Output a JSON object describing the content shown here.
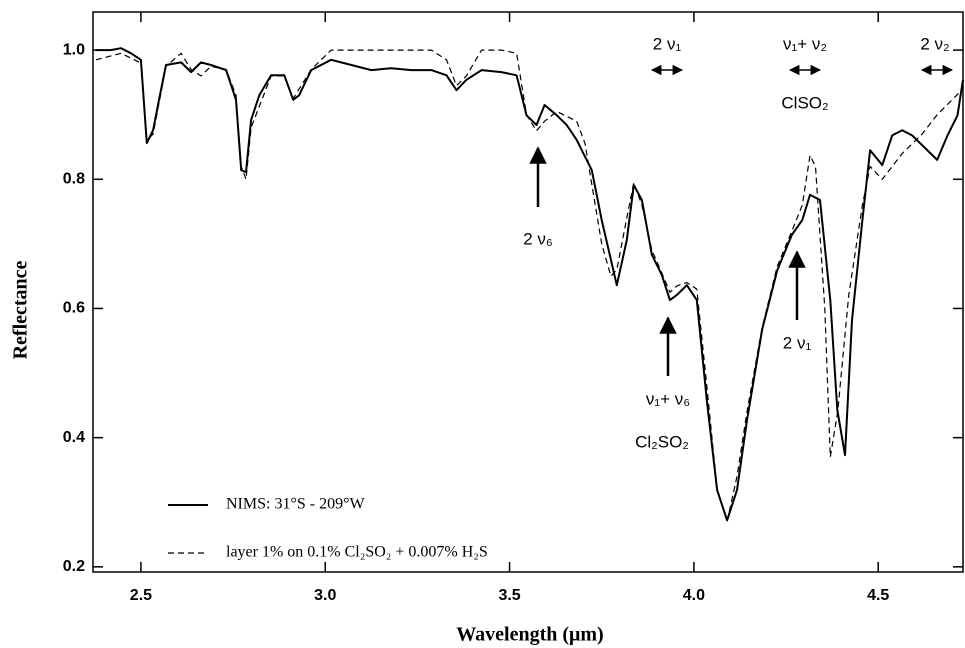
{
  "chart_data": {
    "type": "line",
    "xlabel": "Wavelength  (μm)",
    "ylabel": "Reflectance",
    "xlim": [
      2.37,
      4.73
    ],
    "ylim": [
      0.192,
      1.059
    ],
    "xticks": [
      2.5,
      {
        "value": 3,
        "label": "3.0"
      },
      3.5,
      {
        "value": 4,
        "label": "4.0"
      },
      4.5
    ],
    "yticks": [
      0.2,
      0.4,
      0.6,
      0.8,
      {
        "value": 1,
        "label": "1.0"
      }
    ],
    "grid": false,
    "series": [
      {
        "name": "NIMS:  31°S - 209°W",
        "color": "#000000",
        "dash": false,
        "x": [
          2.378,
          2.418,
          2.446,
          2.473,
          2.5,
          2.516,
          2.533,
          2.549,
          2.568,
          2.609,
          2.636,
          2.663,
          2.69,
          2.731,
          2.758,
          2.772,
          2.785,
          2.799,
          2.821,
          2.853,
          2.889,
          2.913,
          2.929,
          2.962,
          3.016,
          3.071,
          3.125,
          3.179,
          3.234,
          3.288,
          3.329,
          3.356,
          3.383,
          3.424,
          3.478,
          3.519,
          3.546,
          3.573,
          3.595,
          3.628,
          3.655,
          3.682,
          3.723,
          3.75,
          3.791,
          3.818,
          3.837,
          3.859,
          3.886,
          3.913,
          3.935,
          3.954,
          3.981,
          4.008,
          4.035,
          4.063,
          4.09,
          4.117,
          4.144,
          4.185,
          4.226,
          4.266,
          4.294,
          4.315,
          4.342,
          4.37,
          4.389,
          4.41,
          4.429,
          4.457,
          4.478,
          4.511,
          4.538,
          4.565,
          4.592,
          4.619,
          4.66,
          4.688,
          4.715,
          4.73
        ],
        "values": [
          1.0,
          1.0,
          1.003,
          0.995,
          0.985,
          0.856,
          0.876,
          0.923,
          0.977,
          0.981,
          0.966,
          0.981,
          0.977,
          0.969,
          0.923,
          0.814,
          0.811,
          0.892,
          0.93,
          0.961,
          0.961,
          0.923,
          0.93,
          0.969,
          0.985,
          0.977,
          0.969,
          0.972,
          0.969,
          0.969,
          0.961,
          0.938,
          0.954,
          0.969,
          0.966,
          0.961,
          0.899,
          0.884,
          0.915,
          0.899,
          0.884,
          0.861,
          0.814,
          0.737,
          0.636,
          0.706,
          0.791,
          0.768,
          0.683,
          0.652,
          0.613,
          0.621,
          0.636,
          0.613,
          0.458,
          0.319,
          0.272,
          0.319,
          0.427,
          0.567,
          0.659,
          0.714,
          0.737,
          0.776,
          0.768,
          0.613,
          0.443,
          0.373,
          0.582,
          0.737,
          0.845,
          0.822,
          0.868,
          0.876,
          0.868,
          0.853,
          0.83,
          0.868,
          0.899,
          0.954
        ]
      },
      {
        "name": "layer 1% on 0.1% Cl₂SO₂ + 0.007% H₂S",
        "color": "#000000",
        "dash": true,
        "x": [
          2.378,
          2.446,
          2.5,
          2.516,
          2.533,
          2.568,
          2.609,
          2.636,
          2.663,
          2.69,
          2.731,
          2.758,
          2.772,
          2.785,
          2.799,
          2.853,
          2.889,
          2.913,
          2.962,
          3.016,
          3.125,
          3.234,
          3.288,
          3.329,
          3.356,
          3.383,
          3.424,
          3.478,
          3.519,
          3.546,
          3.573,
          3.595,
          3.628,
          3.682,
          3.705,
          3.75,
          3.775,
          3.791,
          3.818,
          3.837,
          3.859,
          3.886,
          3.913,
          3.935,
          3.954,
          3.981,
          4.008,
          4.035,
          4.063,
          4.09,
          4.117,
          4.144,
          4.185,
          4.226,
          4.266,
          4.294,
          4.315,
          4.33,
          4.355,
          4.37,
          4.39,
          4.42,
          4.457,
          4.478,
          4.511,
          4.565,
          4.619,
          4.66,
          4.73
        ],
        "values": [
          0.985,
          0.995,
          0.98,
          0.86,
          0.87,
          0.975,
          0.995,
          0.97,
          0.96,
          0.975,
          0.97,
          0.93,
          0.82,
          0.8,
          0.88,
          0.96,
          0.96,
          0.925,
          0.97,
          1.0,
          1.0,
          1.0,
          1.0,
          0.985,
          0.945,
          0.96,
          1.0,
          1.0,
          0.995,
          0.9,
          0.875,
          0.89,
          0.905,
          0.89,
          0.855,
          0.7,
          0.65,
          0.66,
          0.74,
          0.795,
          0.76,
          0.69,
          0.655,
          0.625,
          0.635,
          0.64,
          0.63,
          0.48,
          0.32,
          0.27,
          0.34,
          0.44,
          0.57,
          0.665,
          0.72,
          0.76,
          0.837,
          0.82,
          0.6,
          0.37,
          0.44,
          0.62,
          0.76,
          0.82,
          0.8,
          0.84,
          0.87,
          0.9,
          0.94
        ]
      }
    ],
    "annotations": [
      "2 ν₆",
      "ν₁+ ν₆",
      "Cl₂SO₂",
      "2 ν₁",
      "2 ν₁",
      "ν₁+ ν₂",
      "ClSO₂",
      "2 ν₂"
    ]
  }
}
